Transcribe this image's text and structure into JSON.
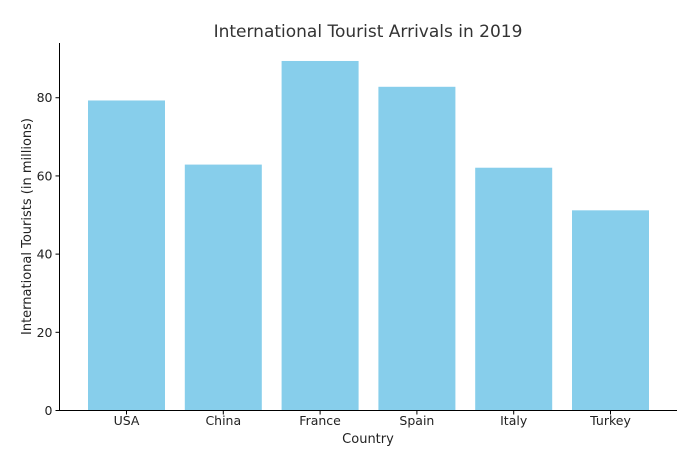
{
  "chart_data": {
    "type": "bar",
    "title": "International Tourist Arrivals in 2019",
    "xlabel": "Country",
    "ylabel": "International Tourists (in millions)",
    "categories": [
      "USA",
      "China",
      "France",
      "Spain",
      "Italy",
      "Turkey"
    ],
    "values": [
      79.3,
      62.9,
      89.4,
      82.8,
      62.1,
      51.2
    ],
    "ylim": [
      0,
      94
    ],
    "yticks": [
      0,
      20,
      40,
      60,
      80
    ],
    "grid": false,
    "bar_color": "#87ceeb",
    "axis_color": "#000000",
    "text_color": "#333333"
  }
}
